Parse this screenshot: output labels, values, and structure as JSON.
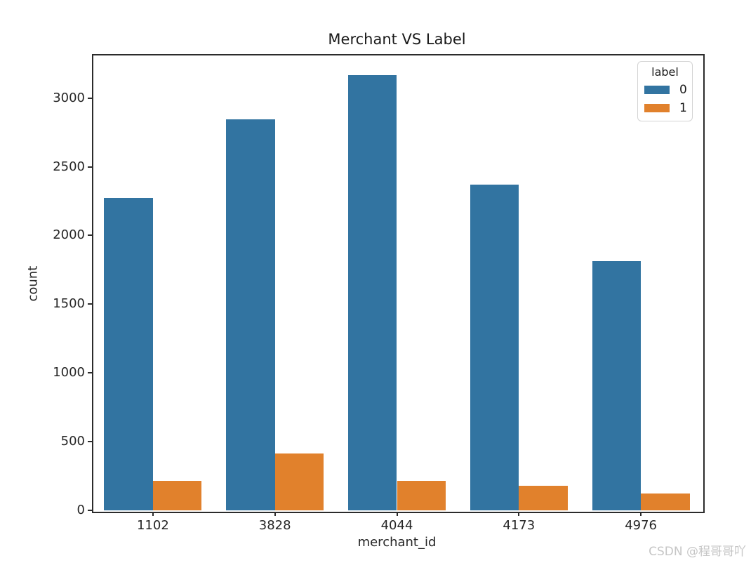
{
  "title": "Merchant VS Label",
  "watermark": "CSDN @程哥哥吖",
  "colors": {
    "label0": "#3274A1",
    "label1": "#E1812C",
    "axis": "#2b2b2b",
    "tick_text": "#262626",
    "watermark": "#c6c6c6"
  },
  "chart_data": {
    "type": "bar",
    "title": "Merchant VS Label",
    "xlabel": "merchant_id",
    "ylabel": "count",
    "legend_title": "label",
    "legend_position": "upper right",
    "grid": false,
    "categories": [
      "1102",
      "3828",
      "4044",
      "4173",
      "4976"
    ],
    "series": [
      {
        "name": "0",
        "color": "#3274A1",
        "values": [
          2275,
          2845,
          3165,
          2370,
          1815
        ]
      },
      {
        "name": "1",
        "color": "#E1812C",
        "values": [
          212,
          415,
          213,
          177,
          124
        ]
      }
    ],
    "ylim": [
      0,
      3320
    ],
    "yticks": [
      0,
      500,
      1000,
      1500,
      2000,
      2500,
      3000
    ]
  }
}
